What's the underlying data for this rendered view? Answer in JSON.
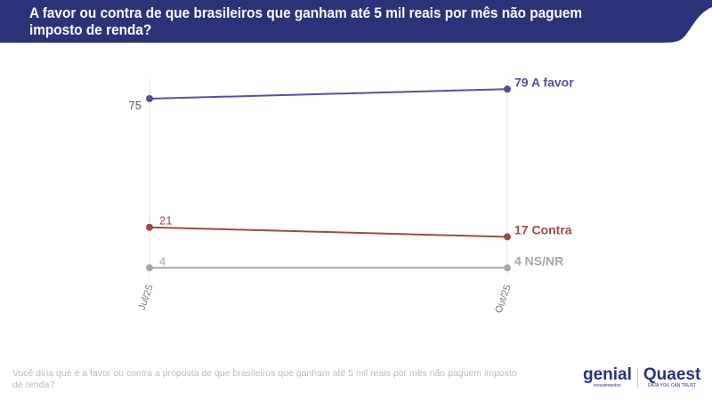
{
  "title": "A favor ou contra de que brasileiros que ganham até 5 mil reais por mês não paguem imposto de renda?",
  "footnote": "Você diria que é a favor ou contra a proposta de que brasileiros que ganham até 5 mil reais por mês não paguem imposto de renda?",
  "logos": {
    "genial": "genial",
    "genial_sub": "investimentos",
    "quaest": "Quaest",
    "quaest_sub": "DATA YOU CAN TRUST"
  },
  "colors": {
    "header": "#2a3278",
    "a_favor": "#5451a0",
    "contra": "#9c4b45",
    "nsnr": "#a6a6a6"
  },
  "chart_data": {
    "type": "line",
    "categories": [
      "Jul/25",
      "Out/25"
    ],
    "grid": "vertical",
    "legend": "end-labels",
    "series": [
      {
        "name": "A favor",
        "values": [
          75,
          79
        ],
        "color": "#5451a0",
        "start_label": "75",
        "end_label": "79 A favor"
      },
      {
        "name": "Contra",
        "values": [
          21,
          17
        ],
        "color": "#9c4b45",
        "start_label": "21",
        "end_label": "17 Contra"
      },
      {
        "name": "NS/NR",
        "values": [
          4,
          4
        ],
        "color": "#a6a6a6",
        "start_label": "4",
        "end_label": "4 NS/NR"
      }
    ]
  }
}
